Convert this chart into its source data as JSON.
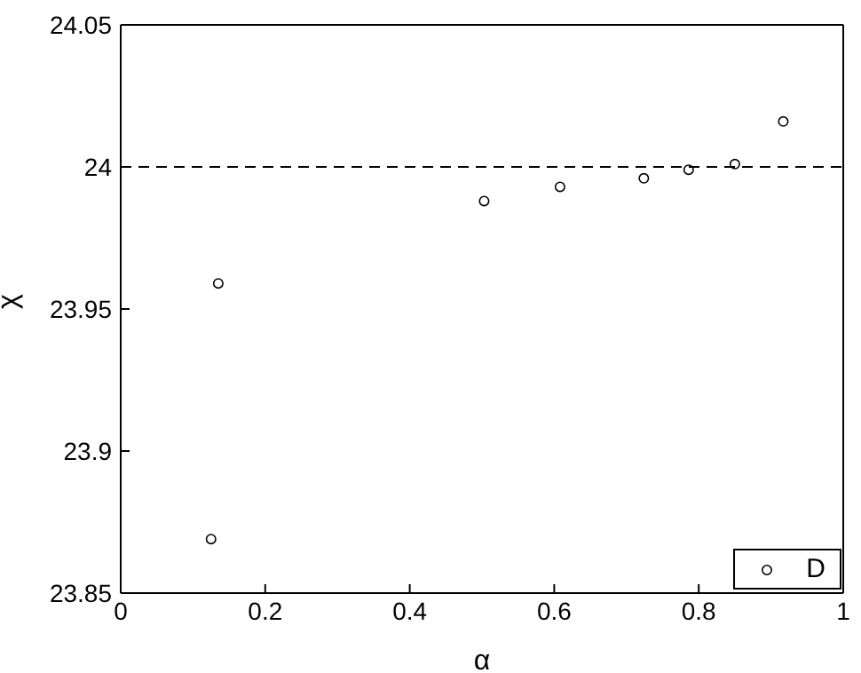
{
  "chart_data": {
    "type": "scatter",
    "xlabel": "α",
    "ylabel": "χ",
    "x": [
      0.125,
      0.135,
      0.503,
      0.608,
      0.724,
      0.786,
      0.85,
      0.917
    ],
    "series": [
      {
        "name": "D",
        "color": "#000000",
        "values": [
          23.869,
          23.959,
          23.988,
          23.993,
          23.996,
          23.999,
          24.001,
          24.016
        ]
      }
    ],
    "xlim": [
      0,
      1
    ],
    "xticks": [
      0,
      0.2,
      0.4,
      0.6,
      0.8,
      1
    ],
    "ylim": [
      23.85,
      24.05
    ],
    "yticks": [
      23.85,
      23.9,
      23.95,
      24,
      24.05
    ],
    "ref_lines": [
      {
        "axis": "y",
        "value": 24,
        "line_style": "dashed",
        "color": "#000000"
      }
    ],
    "marker": "circle",
    "legend": "bottom right",
    "grid": false
  }
}
